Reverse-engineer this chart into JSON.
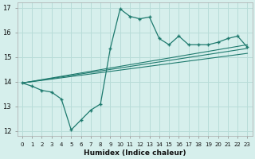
{
  "xlabel": "Humidex (Indice chaleur)",
  "bg_color": "#d6efec",
  "grid_color": "#b8dcd8",
  "line_color": "#1e7a6e",
  "xlim": [
    -0.5,
    23.5
  ],
  "ylim": [
    11.8,
    17.2
  ],
  "xticks": [
    0,
    1,
    2,
    3,
    4,
    5,
    6,
    7,
    8,
    9,
    10,
    11,
    12,
    13,
    14,
    15,
    16,
    17,
    18,
    19,
    20,
    21,
    22,
    23
  ],
  "yticks": [
    12,
    13,
    14,
    15,
    16,
    17
  ],
  "main_x": [
    0,
    1,
    2,
    3,
    4,
    5,
    6,
    7,
    8,
    9,
    10,
    11,
    12,
    13,
    14,
    15,
    16,
    17,
    18,
    19,
    20,
    21,
    22,
    23
  ],
  "main_y": [
    13.95,
    13.82,
    13.65,
    13.58,
    13.3,
    12.05,
    12.45,
    12.85,
    13.1,
    15.35,
    16.95,
    16.65,
    16.55,
    16.62,
    15.75,
    15.5,
    15.85,
    15.5,
    15.5,
    15.5,
    15.6,
    15.75,
    15.85,
    15.4
  ],
  "trend1_x": [
    0,
    23
  ],
  "trend1_y": [
    13.95,
    15.35
  ],
  "trend2_x": [
    0,
    23
  ],
  "trend2_y": [
    13.95,
    15.15
  ],
  "trend3_x": [
    0,
    23
  ],
  "trend3_y": [
    13.95,
    15.5
  ]
}
